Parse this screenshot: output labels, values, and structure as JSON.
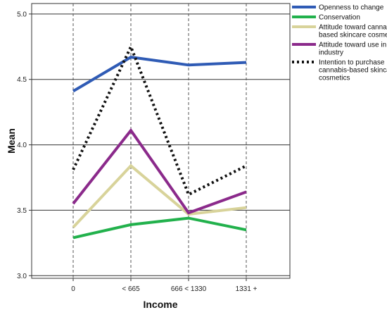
{
  "chart_data": {
    "type": "line",
    "title": "",
    "xlabel": "Income",
    "ylabel": "Mean",
    "categories": [
      "0",
      "< 665",
      "666 < 1330",
      "1331 +"
    ],
    "ylim": [
      2.98,
      5.08
    ],
    "yticks": [
      "3.0",
      "3.5",
      "4.0",
      "4.5",
      "5.0"
    ],
    "grid": true,
    "legend_position": "top-right",
    "series": [
      {
        "name": "Openness to change",
        "values": [
          4.41,
          4.67,
          4.61,
          4.63
        ],
        "color": "#2f5bb5",
        "dash": false
      },
      {
        "name": "Conservation",
        "values": [
          3.29,
          3.39,
          3.44,
          3.35
        ],
        "color": "#22b14c",
        "dash": false
      },
      {
        "name": "Attitude toward cannabis-based skincare cosmetics",
        "values": [
          3.37,
          3.84,
          3.47,
          3.52
        ],
        "color": "#d8d39a",
        "dash": false
      },
      {
        "name": "Attitude toward use in industry",
        "values": [
          3.55,
          4.11,
          3.48,
          3.64
        ],
        "color": "#8b2a8b",
        "dash": false
      },
      {
        "name": "Intention to purchase cannabis-based skincare cosmetics",
        "values": [
          3.81,
          4.75,
          3.62,
          3.84
        ],
        "color": "#111111",
        "dash": true
      }
    ],
    "legend_lines": [
      [
        "Openness to change"
      ],
      [
        "Conservation"
      ],
      [
        "Attitude toward cannabis-",
        "based skincare cosmetics"
      ],
      [
        "Attitude toward use in",
        "industry"
      ],
      [
        "Intention to purchase",
        "cannabis-based skincare",
        "cosmetics"
      ]
    ]
  }
}
